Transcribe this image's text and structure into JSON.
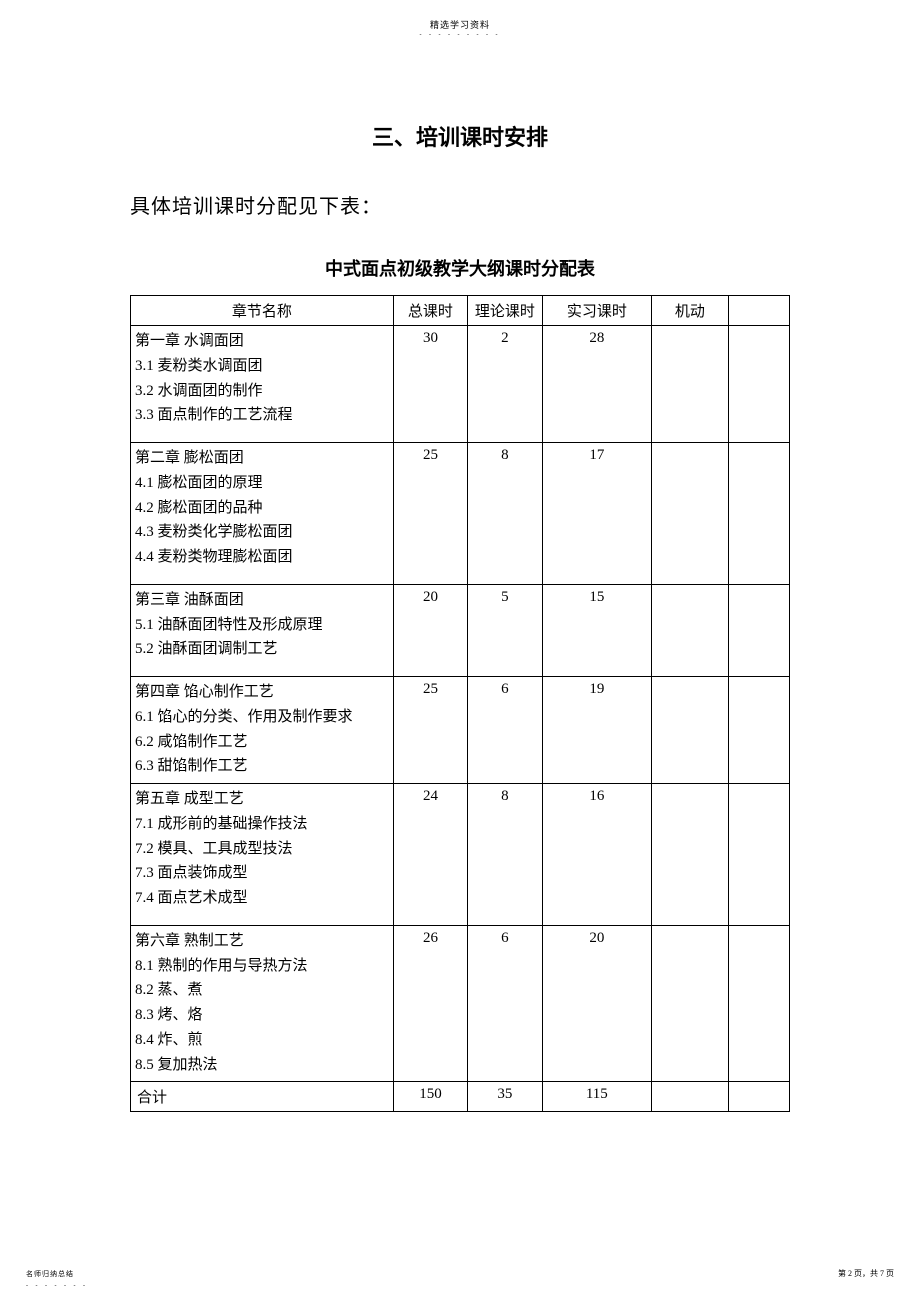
{
  "header": {
    "small": "精选学习资料",
    "dots": "- - - - - - - - -"
  },
  "section_title": "三、培训课时安排",
  "intro": "具体培训课时分配见下表：",
  "table_title": "中式面点初级教学大纲课时分配表",
  "columns": {
    "name": "章节名称",
    "total": "总课时",
    "theory": "理论课时",
    "practice": "实习课时",
    "flex": "机动",
    "blank": ""
  },
  "rows": [
    {
      "title": "第一章   水调面团",
      "items": [
        "3.1 麦粉类水调面团",
        "3.2 水调面团的制作",
        "3.3 面点制作的工艺流程"
      ],
      "total": "30",
      "theory": "2",
      "practice": "28",
      "flex": "",
      "blank": "",
      "tight": false
    },
    {
      "title": "第二章   膨松面团",
      "items": [
        "4.1 膨松面团的原理",
        "4.2 膨松面团的品种",
        "4.3 麦粉类化学膨松面团",
        "4.4 麦粉类物理膨松面团"
      ],
      "total": "25",
      "theory": "8",
      "practice": "17",
      "flex": "",
      "blank": "",
      "tight": false
    },
    {
      "title": "第三章   油酥面团",
      "items": [
        "5.1 油酥面团特性及形成原理",
        "5.2 油酥面团调制工艺"
      ],
      "total": "20",
      "theory": "5",
      "practice": "15",
      "flex": "",
      "blank": "",
      "tight": false
    },
    {
      "title": "第四章   馅心制作工艺",
      "items": [
        "6.1 馅心的分类、作用及制作要求",
        "6.2 咸馅制作工艺",
        "6.3 甜馅制作工艺"
      ],
      "total": "25",
      "theory": "6",
      "practice": "19",
      "flex": "",
      "blank": "",
      "tight": true
    },
    {
      "title": "第五章   成型工艺",
      "items": [
        "7.1 成形前的基础操作技法",
        "7.2 模具、工具成型技法",
        "7.3 面点装饰成型",
        "7.4 面点艺术成型"
      ],
      "total": "24",
      "theory": "8",
      "practice": "16",
      "flex": "",
      "blank": "",
      "tight": false
    },
    {
      "title": "第六章   熟制工艺",
      "items": [
        "8.1 熟制的作用与导热方法",
        "8.2 蒸、煮",
        "8.3 烤、烙",
        "8.4 炸、煎",
        "8.5 复加热法"
      ],
      "total": "26",
      "theory": "6",
      "practice": "20",
      "flex": "",
      "blank": "",
      "tight": true
    }
  ],
  "totals": {
    "label": "合计",
    "total": "150",
    "theory": "35",
    "practice": "115",
    "flex": "",
    "blank": ""
  },
  "footer": {
    "left": "名师归纳总结",
    "left_dots": "- - - - - - -",
    "right": "第 2 页，共 7 页"
  }
}
